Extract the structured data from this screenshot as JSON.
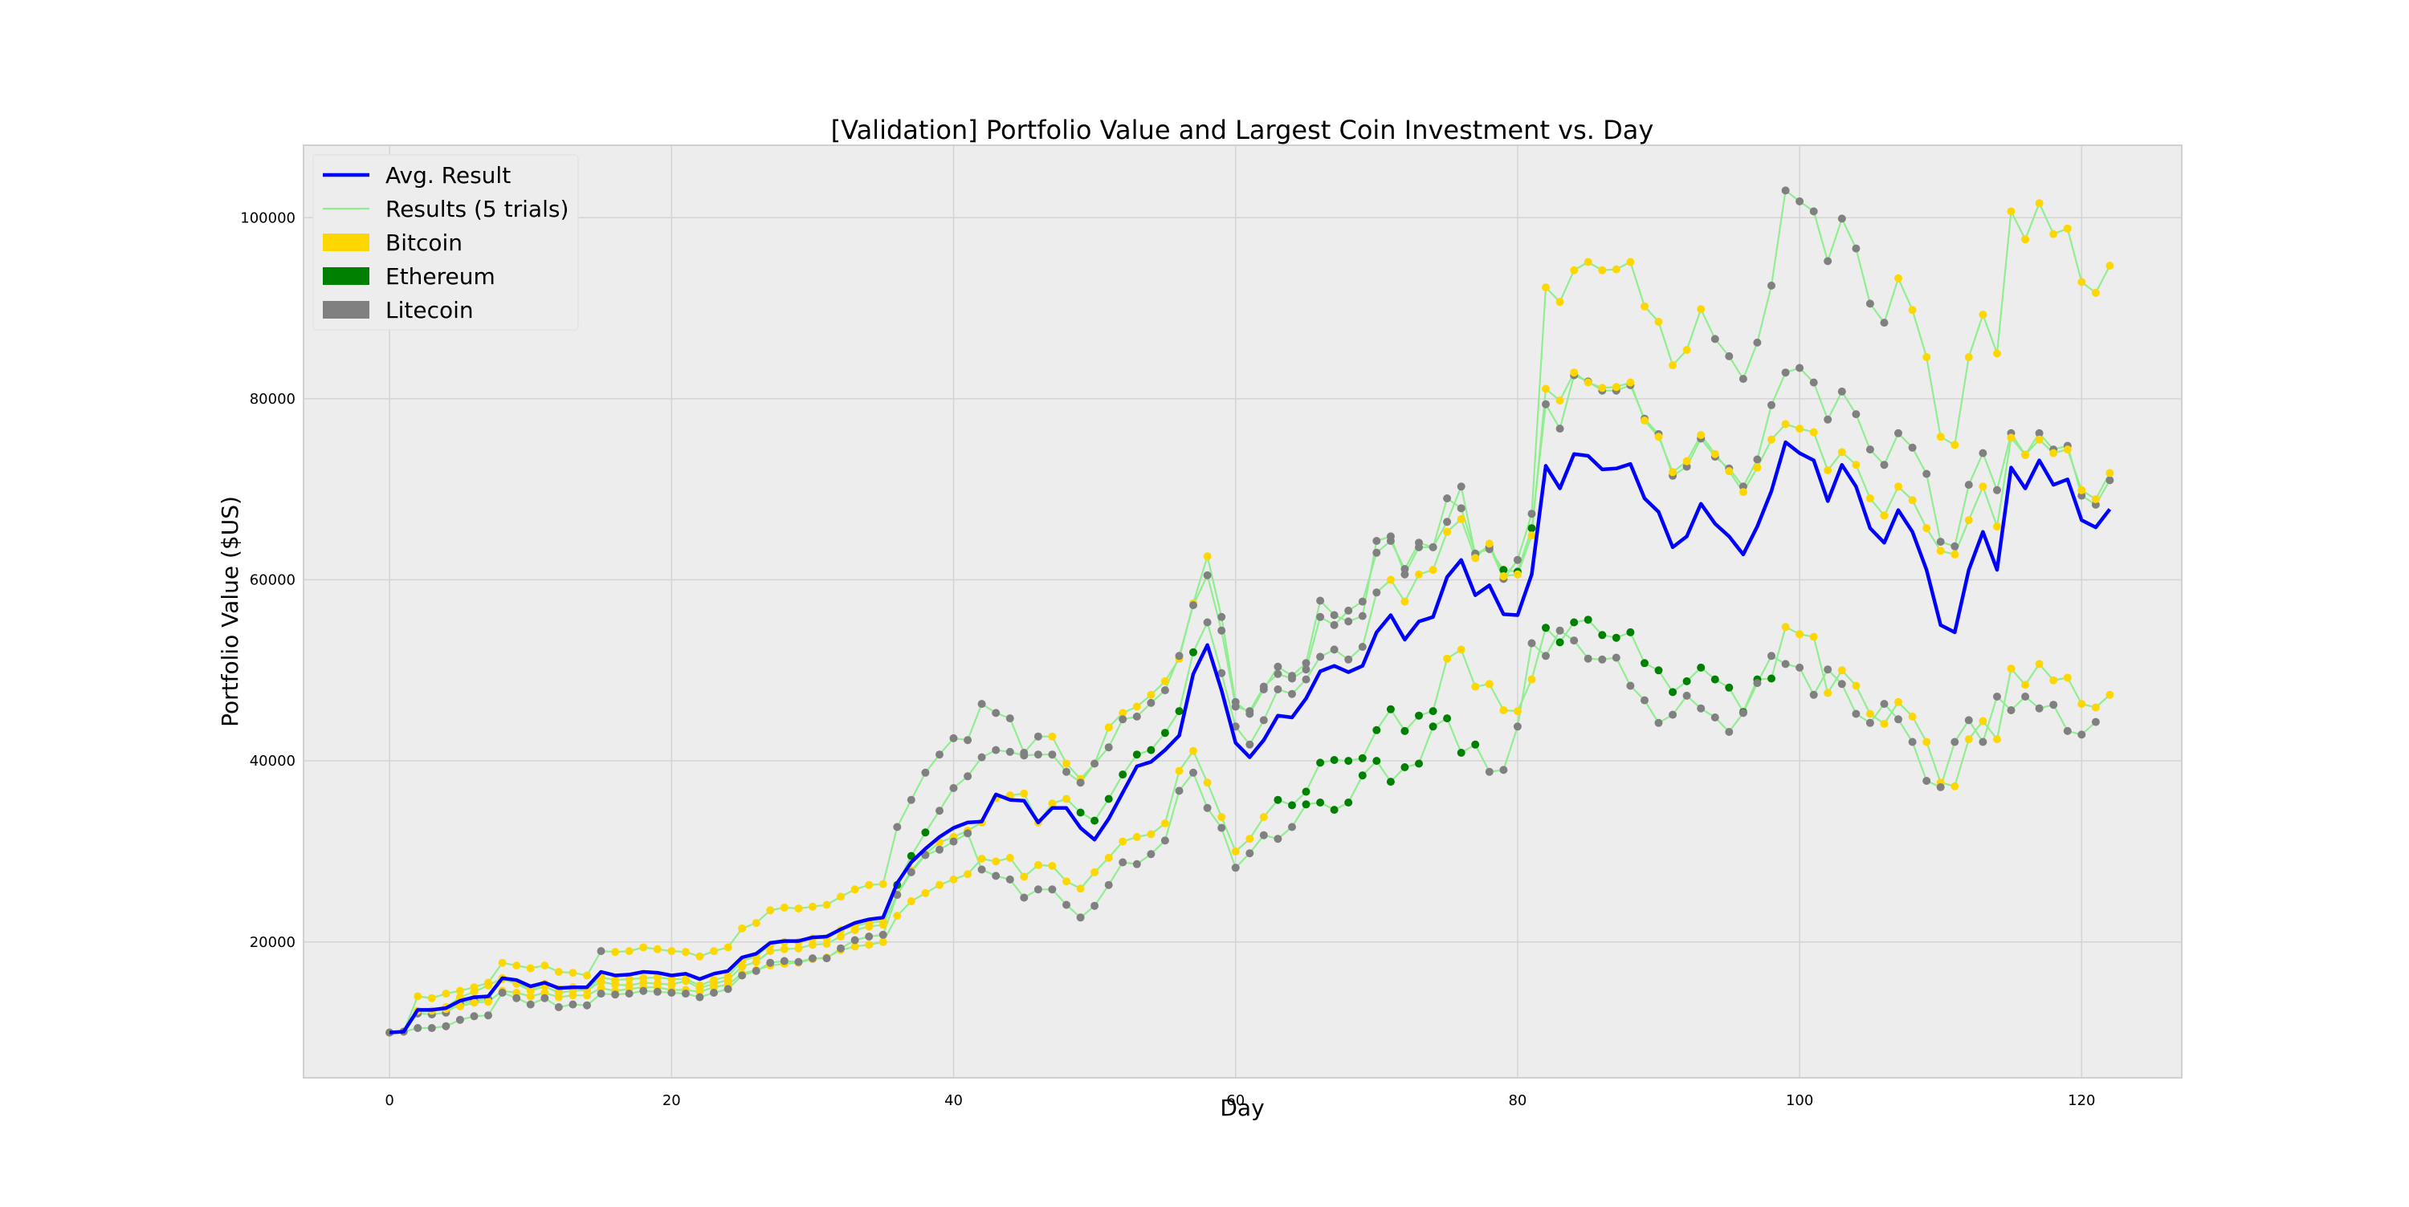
{
  "chart_data": {
    "type": "line",
    "title": "[Validation] Portfolio Value and Largest Coin Investment vs. Day",
    "xlabel": "Day",
    "ylabel": "Portfolio Value ($US)",
    "xlim": [
      -6.1,
      127.1
    ],
    "ylim": [
      5000,
      108000
    ],
    "x_ticks": [
      0,
      20,
      40,
      60,
      80,
      100,
      120
    ],
    "y_ticks": [
      20000,
      40000,
      60000,
      80000,
      100000
    ],
    "grid": true,
    "legend_position": "top-left",
    "colors": {
      "Avg. Result": "#0000ff",
      "Results (5 trials)": "#90ee90",
      "Bitcoin": "#ffd700",
      "Ethereum": "#008000",
      "Litecoin": "#808080"
    },
    "legend": [
      {
        "label": "Avg. Result",
        "kind": "line",
        "color": "#0000ff"
      },
      {
        "label": "Results (5 trials)",
        "kind": "line",
        "color": "#90ee90"
      },
      {
        "label": "Bitcoin",
        "kind": "patch",
        "color": "#ffd700"
      },
      {
        "label": "Ethereum",
        "kind": "patch",
        "color": "#008000"
      },
      {
        "label": "Litecoin",
        "kind": "patch",
        "color": "#808080"
      }
    ],
    "x_start": 0,
    "series": [
      {
        "name": "Avg. Result",
        "values": [
          10000,
          10100,
          12500,
          12500,
          12700,
          13500,
          13900,
          14000,
          16000,
          15800,
          15100,
          15500,
          14900,
          15000,
          15000,
          16700,
          16300,
          16400,
          16700,
          16600,
          16300,
          16500,
          15900,
          16500,
          16800,
          18300,
          18700,
          19900,
          20100,
          20100,
          20500,
          20600,
          21400,
          22100,
          22500,
          22700,
          26500,
          28800,
          30300,
          31600,
          32600,
          33200,
          33300,
          36300,
          35700,
          35600,
          33200,
          34800,
          34800,
          32600,
          31300,
          33600,
          36500,
          39400,
          39900,
          41200,
          42800,
          49600,
          52800,
          47800,
          42000,
          40400,
          42300,
          45000,
          44800,
          46900,
          49900,
          50500,
          49800,
          50500,
          54200,
          56100,
          53400,
          55400,
          55900,
          60300,
          62200,
          58300,
          59400,
          56200,
          56100,
          60600,
          72600,
          70100,
          73900,
          73700,
          72200,
          72300,
          72800,
          69000,
          67500,
          63600,
          64800,
          68400,
          66200,
          64800,
          62800,
          65900,
          69800,
          75200,
          74000,
          73200,
          68700,
          72700,
          70300,
          65700,
          64100,
          67700,
          65300,
          61100,
          55000,
          54200,
          61100,
          65300,
          61100,
          72400,
          70100,
          73200,
          70500,
          71100,
          66600,
          65800,
          67800
        ]
      },
      {
        "name": "Results (5 trials)",
        "values": [
          10000,
          10100,
          14000,
          13800,
          14300,
          14600,
          15000,
          15500,
          17700,
          17400,
          17100,
          17400,
          16700,
          16600,
          16300,
          19000,
          18900,
          19000,
          19400,
          19200,
          19000,
          18900,
          18400,
          19000,
          19400,
          21500,
          22100,
          23500,
          23800,
          23700,
          23900,
          24100,
          25000,
          25800,
          26300,
          26400,
          32700,
          35700,
          38700,
          40700,
          42500,
          42300,
          46300,
          45300,
          44700,
          40900,
          42700,
          42700,
          39700,
          38000,
          39700,
          43700,
          45300,
          46000,
          47300,
          48800,
          51300,
          57400,
          62600,
          55900,
          46500,
          45200,
          47900,
          50400,
          49400,
          50800,
          57700,
          56100,
          55400,
          56000,
          64300,
          64800,
          60600,
          63600,
          63600,
          66400,
          70300,
          62800,
          63700,
          60100,
          62200,
          67300,
          92300,
          90700,
          94200,
          95100,
          94200,
          94300,
          95100,
          90200,
          88500,
          83700,
          85400,
          89900,
          86600,
          84700,
          82200,
          86200,
          92500,
          103000,
          101800,
          100700,
          95200,
          99900,
          96600,
          90500,
          88400,
          93300,
          89800,
          84600,
          75800,
          74900,
          84600,
          89300,
          85000,
          100700,
          97600,
          101600,
          98200,
          98800,
          92900,
          91700,
          94700
        ]
      },
      {
        "name": "Results (5 trials)",
        "values": [
          10000,
          10100,
          12300,
          12400,
          12800,
          13900,
          14500,
          15200,
          16000,
          15500,
          14800,
          15400,
          14800,
          15000,
          14700,
          16100,
          15800,
          15900,
          16000,
          16100,
          15900,
          15900,
          15200,
          15800,
          16200,
          17900,
          18400,
          19700,
          20000,
          20000,
          20400,
          20400,
          21300,
          21800,
          22100,
          22300,
          26300,
          29500,
          32100,
          34500,
          37000,
          38300,
          40400,
          41200,
          41000,
          40600,
          40700,
          40700,
          38800,
          37600,
          39700,
          41500,
          44600,
          44900,
          46400,
          47800,
          51600,
          57200,
          60500,
          54400,
          46000,
          45500,
          48200,
          49600,
          49100,
          50100,
          55900,
          55000,
          56600,
          57600,
          63000,
          64300,
          61200,
          64100,
          63600,
          69000,
          67900,
          62900,
          63400,
          61100,
          60900,
          65700,
          79400,
          76700,
          82600,
          81900,
          80900,
          80900,
          81500,
          77800,
          76100,
          71500,
          72500,
          75600,
          73600,
          72300,
          70300,
          73300,
          79300,
          82900,
          83400,
          81800,
          77700,
          80800,
          78300,
          74400,
          72700,
          76200,
          74600,
          71700,
          64200,
          63700,
          70500,
          74000,
          69900,
          76200,
          73800,
          76200,
          74400,
          74800,
          69300,
          68300,
          71000
        ]
      },
      {
        "name": "Results (5 trials)",
        "values": [
          10000,
          10100,
          12100,
          12000,
          12200,
          13200,
          13500,
          13700,
          15900,
          15400,
          14600,
          15100,
          14400,
          14600,
          14700,
          15600,
          15300,
          15200,
          15500,
          15400,
          15300,
          15700,
          14900,
          15400,
          15800,
          17300,
          17800,
          19000,
          19200,
          19300,
          19700,
          19800,
          20600,
          21300,
          21700,
          21900,
          25300,
          27900,
          29700,
          31000,
          31600,
          32300,
          33200,
          35900,
          36200,
          36400,
          33200,
          35300,
          35800,
          34300,
          33400,
          35800,
          38500,
          40700,
          41200,
          43100,
          45500,
          52000,
          55300,
          49700,
          43800,
          41800,
          44500,
          47900,
          47400,
          49000,
          51500,
          52300,
          51200,
          52600,
          58600,
          60000,
          57600,
          60600,
          61100,
          65300,
          66700,
          62400,
          64000,
          60400,
          60600,
          64900,
          81100,
          79800,
          82900,
          81800,
          81200,
          81300,
          81800,
          77600,
          75800,
          71900,
          73100,
          76000,
          73900,
          72000,
          69700,
          72400,
          75500,
          77200,
          76700,
          76300,
          72100,
          74100,
          72700,
          69000,
          67100,
          70300,
          68800,
          65700,
          63200,
          62800,
          66600,
          70300,
          65900,
          75700,
          73800,
          75500,
          74000,
          74400,
          69900,
          68900,
          71800
        ]
      },
      {
        "name": "Results (5 trials)",
        "values": [
          10000,
          10100,
          12400,
          12400,
          12600,
          12900,
          13300,
          13400,
          14600,
          14400,
          14000,
          14400,
          13900,
          14100,
          14100,
          14900,
          14600,
          14800,
          15000,
          15000,
          14700,
          14700,
          14500,
          15000,
          15300,
          16500,
          16900,
          17400,
          17600,
          17700,
          18100,
          18300,
          19100,
          19500,
          19700,
          20000,
          22900,
          24500,
          25400,
          26300,
          26900,
          27500,
          29200,
          28900,
          29300,
          27200,
          28500,
          28400,
          26700,
          25900,
          27700,
          29300,
          31100,
          31600,
          31900,
          33100,
          38900,
          41100,
          37600,
          33800,
          30000,
          31400,
          33800,
          35700,
          35100,
          36600,
          39800,
          40100,
          40000,
          40300,
          43400,
          45700,
          43300,
          45000,
          45500,
          51300,
          52300,
          48200,
          48500,
          45600,
          45500,
          49000,
          54700,
          53100,
          55300,
          55600,
          53900,
          53600,
          54200,
          50800,
          50000,
          47600,
          48800,
          50300,
          49000,
          48100,
          45400,
          49000,
          49100,
          54800,
          54000,
          53700,
          47500,
          50000,
          48300,
          45200,
          44100,
          46500,
          44900,
          42100,
          37600,
          37200,
          42400,
          44400,
          42400,
          50200,
          48400,
          50700,
          48900,
          49200,
          46300,
          45900,
          47300
        ]
      },
      {
        "name": "Results (5 trials)",
        "values": [
          10000,
          10100,
          10500,
          10500,
          10700,
          11400,
          11800,
          11900,
          14400,
          13800,
          13100,
          13800,
          12800,
          13100,
          13000,
          14300,
          14200,
          14300,
          14600,
          14500,
          14400,
          14300,
          13900,
          14400,
          14800,
          16300,
          16800,
          17700,
          17900,
          17800,
          18200,
          18200,
          19300,
          20200,
          20600,
          20800,
          25200,
          27700,
          29600,
          30200,
          31100,
          32000,
          28000,
          27300,
          26900,
          24900,
          25800,
          25800,
          24100,
          22700,
          24000,
          26300,
          28800,
          28600,
          29700,
          31200,
          36700,
          38700,
          34800,
          32600,
          28200,
          29800,
          31800,
          31400,
          32700,
          35200,
          35400,
          34600,
          35400,
          38400,
          40000,
          37700,
          39300,
          39700,
          43800,
          44700,
          40900,
          41800,
          38800,
          39000,
          43800,
          53000,
          51600,
          54400,
          53300,
          51300,
          51200,
          51400,
          48300,
          46700,
          44200,
          45100,
          47200,
          45800,
          44800,
          43200,
          45300,
          48600,
          51600,
          50700,
          50300,
          47300,
          50100,
          48500,
          45200,
          44200,
          46300,
          44600,
          42100,
          37800,
          37100,
          42100,
          44500,
          42100,
          47100,
          45600,
          47100,
          45800,
          46200,
          43300,
          42900,
          44300
        ]
      }
    ],
    "markers": [
      "BBBBBBBBBBBBBBBLBBBBBBBBBBBBBBBBBBBBLLLLLLLLLLLBBBBBBBBBBBBLLLLLLLLLLLLLLLLLLLLLLLBBBBBBBBBBBBLLLLLLLLLLLLLBBBBBBBBBBBBBBBBBBBBBBBBB",
      "BBBBBBBBBBBBBBBBBBBBBBBBBBBBBBBBBBBBEEELLLLLLLLLLLLLLLLLLLLLLLLLLLLLLLLLLLLLLLLEEELLLLLLLLLLLLLLLLLLLLLLLLLLLLLLLLLLLLLLLLLLLLLLLLLLL",
      "LLLLLLLLBBBBBBBBBBBBBBBBBBBBBBBBBBBBBBBBBBBBBBBBBEEEEEEEEELLLLLLLLLLLLLBBBBBBBBBBBBBBBBBBBBBBBBBBBBBBBBBBBBBBBBBBBBBBBBBBBBBBBBBBB",
      "BBBBBBBBBBBBBBBBBBBBBBBBBBBBBBBBBBBBBBBBBBBBBBBBBBBBBBBBBBBBBBBEEEEEEEEEEEEBBBBBBBEEEEEEEEEEEEEEEEEBBBBBBBBBBBBBBBBBBBBBBBBBBBBBBBB",
      "LLLLLLLLLLLLLLLLLLLLLLLLLLLLLLLLLLLLLLLLLLLLLLLLLLLLLLLLLLLLLLLLLEEEEEEEEEEEEELLLLLLLLLLLLLLLLLLLLLLLLLLLLLLLLLLLLLLLLLLLLLLLLLLL"
    ]
  }
}
